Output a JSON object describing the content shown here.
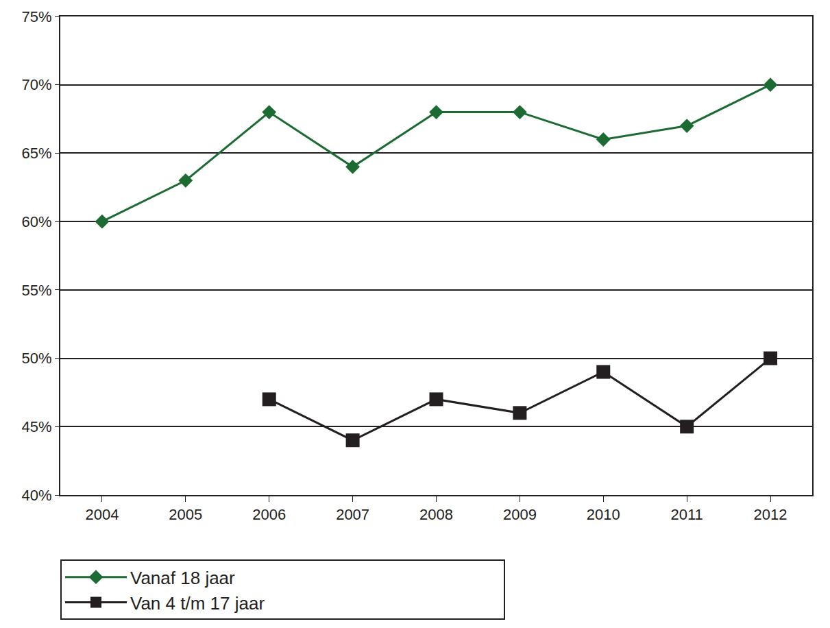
{
  "chart_data": {
    "type": "line",
    "categories": [
      "2004",
      "2005",
      "2006",
      "2007",
      "2008",
      "2009",
      "2010",
      "2011",
      "2012"
    ],
    "series": [
      {
        "name": "Vanaf 18 jaar",
        "color": "#1b6b32",
        "marker": "diamond",
        "values": [
          60,
          63,
          68,
          64,
          68,
          68,
          66,
          67,
          70
        ]
      },
      {
        "name": "Van 4 t/m 17 jaar",
        "color": "#231f20",
        "marker": "square",
        "values": [
          null,
          null,
          47,
          44,
          47,
          46,
          49,
          45,
          50
        ]
      }
    ],
    "ylim": [
      40,
      75
    ],
    "yticks": [
      {
        "value": 40,
        "label": "40%"
      },
      {
        "value": 45,
        "label": "45%"
      },
      {
        "value": 50,
        "label": "50%"
      },
      {
        "value": 55,
        "label": "55%"
      },
      {
        "value": 60,
        "label": "60%"
      },
      {
        "value": 65,
        "label": "65%"
      },
      {
        "value": 70,
        "label": "70%"
      },
      {
        "value": 75,
        "label": "75%"
      }
    ],
    "grid": true,
    "legend": "bottom"
  }
}
